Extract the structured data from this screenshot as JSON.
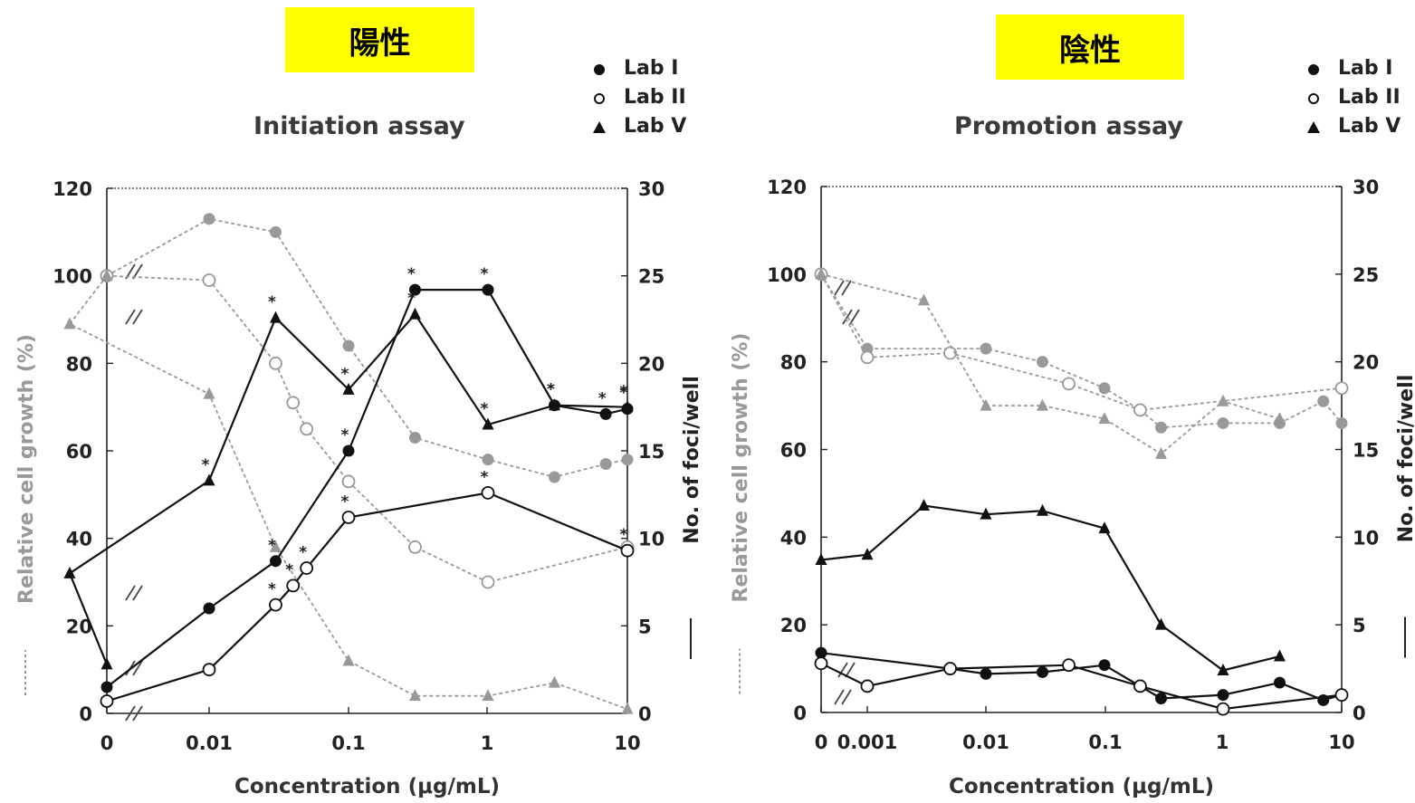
{
  "left": {
    "tag": "陽性",
    "title": "Initiation assay",
    "legend": [
      {
        "marker": "filled-circle",
        "label": "Lab I"
      },
      {
        "marker": "open-circle",
        "label": "Lab II"
      },
      {
        "marker": "filled-triangle",
        "label": "Lab V"
      }
    ]
  },
  "right": {
    "tag": "陰性",
    "title": "Promotion assay",
    "legend": [
      {
        "marker": "filled-circle",
        "label": "Lab I"
      },
      {
        "marker": "open-circle",
        "label": "Lab II"
      },
      {
        "marker": "filled-triangle",
        "label": "Lab V"
      }
    ]
  },
  "colors": {
    "foci": "#111111",
    "growth": "#999999",
    "tag_bg": "#ffff00"
  },
  "chart_data": [
    {
      "type": "line",
      "title": "Initiation assay",
      "xlabel": "Concentration (μg/mL)",
      "ylabel": "Relative cell growth (%)",
      "ylabel2": "No. of foci/well",
      "x_scale": "log with break at 0",
      "x_ticks": [
        "0",
        "0.01",
        "0.1",
        "1",
        "10"
      ],
      "y_ticks": [
        "0",
        "20",
        "40",
        "60",
        "80",
        "100",
        "120"
      ],
      "y2_ticks": [
        "0",
        "5",
        "10",
        "15",
        "20",
        "25",
        "30"
      ],
      "ylim": [
        0,
        120
      ],
      "y2lim": [
        0,
        30
      ],
      "series": [
        {
          "name": "Lab I",
          "marker": "filled-circle",
          "axis": "growth",
          "points": [
            [
              0,
              100
            ],
            [
              0.01,
              113
            ],
            [
              0.03,
              110
            ],
            [
              0.1,
              84
            ],
            [
              0.3,
              63
            ],
            [
              1,
              58
            ],
            [
              3,
              54
            ],
            [
              7,
              57
            ],
            [
              10,
              58
            ]
          ]
        },
        {
          "name": "Lab II",
          "marker": "open-circle",
          "axis": "growth",
          "points": [
            [
              0,
              100
            ],
            [
              0.01,
              99
            ],
            [
              0.03,
              80
            ],
            [
              0.04,
              71
            ],
            [
              0.05,
              65
            ],
            [
              0.1,
              53
            ],
            [
              0.3,
              38
            ],
            [
              1,
              30
            ],
            [
              10,
              38
            ]
          ]
        },
        {
          "name": "Lab V",
          "marker": "filled-triangle",
          "axis": "growth",
          "points": [
            [
              0,
              100
            ],
            [
              0.001,
              89
            ],
            [
              0.01,
              73
            ],
            [
              0.03,
              38
            ],
            [
              0.1,
              12
            ],
            [
              0.3,
              4
            ],
            [
              1,
              4
            ],
            [
              3,
              7
            ],
            [
              10,
              1
            ]
          ]
        },
        {
          "name": "Lab I",
          "marker": "filled-circle",
          "axis": "foci",
          "points": [
            [
              0,
              1.5
            ],
            [
              0.01,
              6
            ],
            [
              0.03,
              8.7
            ],
            [
              0.1,
              15
            ],
            [
              0.3,
              24.2
            ],
            [
              1,
              24.2
            ],
            [
              3,
              17.6
            ],
            [
              7,
              17.1
            ],
            [
              10,
              17.4
            ]
          ],
          "significant": [
            false,
            false,
            true,
            true,
            true,
            true,
            true,
            true,
            true
          ]
        },
        {
          "name": "Lab II",
          "marker": "open-circle",
          "axis": "foci",
          "points": [
            [
              0,
              0.7
            ],
            [
              0.01,
              2.5
            ],
            [
              0.03,
              6.2
            ],
            [
              0.04,
              7.3
            ],
            [
              0.05,
              8.3
            ],
            [
              0.1,
              11.2
            ],
            [
              1,
              12.6
            ],
            [
              10,
              9.3
            ]
          ],
          "significant": [
            false,
            false,
            true,
            true,
            true,
            true,
            true,
            true
          ]
        },
        {
          "name": "Lab V",
          "marker": "filled-triangle",
          "axis": "foci",
          "points": [
            [
              0,
              2.8
            ],
            [
              0.001,
              8
            ],
            [
              0.01,
              13.3
            ],
            [
              0.03,
              22.6
            ],
            [
              0.1,
              18.5
            ],
            [
              0.3,
              22.8
            ],
            [
              1,
              16.5
            ],
            [
              3,
              17.6
            ],
            [
              10,
              17.5
            ]
          ],
          "significant": [
            false,
            false,
            true,
            true,
            true,
            true,
            true,
            true,
            true
          ]
        }
      ]
    },
    {
      "type": "line",
      "title": "Promotion assay",
      "xlabel": "Concentration (μg/mL)",
      "ylabel": "Relative cell growth (%)",
      "ylabel2": "No. of foci/well",
      "x_scale": "log with break at 0",
      "x_ticks": [
        "0",
        "0.001",
        "0.01",
        "0.1",
        "1",
        "10"
      ],
      "y_ticks": [
        "0",
        "20",
        "40",
        "60",
        "80",
        "100",
        "120"
      ],
      "y2_ticks": [
        "0",
        "5",
        "10",
        "15",
        "20",
        "25",
        "30"
      ],
      "ylim": [
        0,
        120
      ],
      "y2lim": [
        0,
        30
      ],
      "series": [
        {
          "name": "Lab I",
          "marker": "filled-circle",
          "axis": "growth",
          "points": [
            [
              0,
              100
            ],
            [
              0.001,
              83
            ],
            [
              0.01,
              83
            ],
            [
              0.03,
              80
            ],
            [
              0.1,
              74
            ],
            [
              0.2,
              69
            ],
            [
              0.3,
              65
            ],
            [
              1,
              66
            ],
            [
              3,
              66
            ],
            [
              7,
              71
            ],
            [
              10,
              66
            ]
          ]
        },
        {
          "name": "Lab II",
          "marker": "open-circle",
          "axis": "growth",
          "points": [
            [
              0,
              100
            ],
            [
              0.001,
              81
            ],
            [
              0.005,
              82
            ],
            [
              0.05,
              75
            ],
            [
              0.2,
              69
            ],
            [
              10,
              74
            ]
          ]
        },
        {
          "name": "Lab V",
          "marker": "filled-triangle",
          "axis": "growth",
          "points": [
            [
              0,
              100
            ],
            [
              0.003,
              94
            ],
            [
              0.01,
              70
            ],
            [
              0.03,
              70
            ],
            [
              0.1,
              67
            ],
            [
              0.3,
              59
            ],
            [
              1,
              71
            ],
            [
              3,
              67
            ]
          ]
        },
        {
          "name": "Lab I",
          "marker": "filled-circle",
          "axis": "foci",
          "points": [
            [
              0,
              3.4
            ],
            [
              0.005,
              2.5
            ],
            [
              0.01,
              2.2
            ],
            [
              0.03,
              2.3
            ],
            [
              0.1,
              2.7
            ],
            [
              0.2,
              1.5
            ],
            [
              0.3,
              0.8
            ],
            [
              1,
              1
            ],
            [
              3,
              1.7
            ],
            [
              7,
              0.7
            ],
            [
              10,
              1
            ]
          ]
        },
        {
          "name": "Lab II",
          "marker": "open-circle",
          "axis": "foci",
          "points": [
            [
              0,
              2.8
            ],
            [
              0.001,
              1.5
            ],
            [
              0.005,
              2.5
            ],
            [
              0.05,
              2.7
            ],
            [
              0.2,
              1.5
            ],
            [
              1,
              0.2
            ],
            [
              10,
              1
            ]
          ]
        },
        {
          "name": "Lab V",
          "marker": "filled-triangle",
          "axis": "foci",
          "points": [
            [
              0,
              8.7
            ],
            [
              0.001,
              9
            ],
            [
              0.003,
              11.8
            ],
            [
              0.01,
              11.3
            ],
            [
              0.03,
              11.5
            ],
            [
              0.1,
              10.5
            ],
            [
              0.3,
              5
            ],
            [
              1,
              2.4
            ],
            [
              3,
              3.2
            ]
          ]
        }
      ]
    }
  ]
}
